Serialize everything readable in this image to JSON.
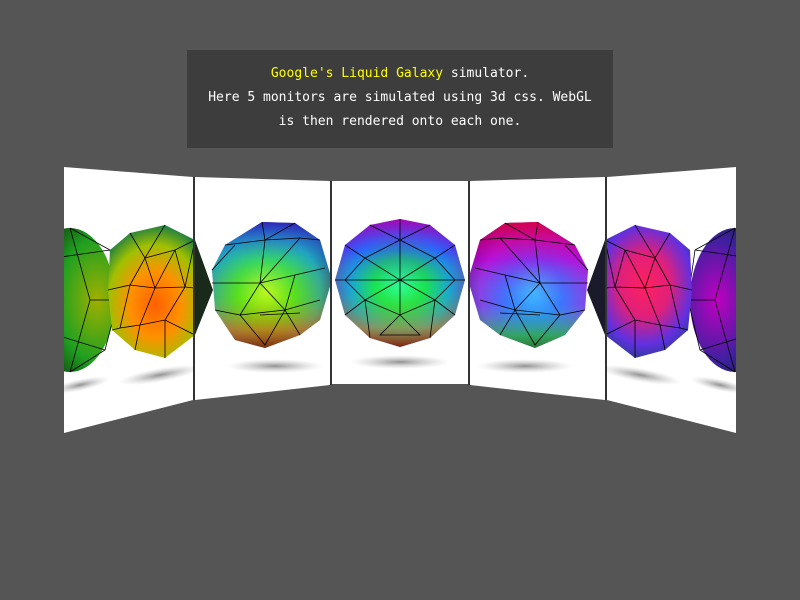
{
  "info": {
    "link_text": "Google's Liquid Galaxy",
    "line1_suffix": " simulator.",
    "line2": "Here 5 monitors are simulated using 3d css. WebGL",
    "line3": "is then rendered onto each one."
  },
  "colors": {
    "background": "#555555",
    "info_panel": "#3d3d3d",
    "link": "#ffff00",
    "text": "#ffffff",
    "screen": "#ffffff"
  },
  "monitors": [
    {
      "name": "monitor-1",
      "view": "far-left",
      "sphere_hues": [
        "green",
        "orange",
        "red"
      ]
    },
    {
      "name": "monitor-2",
      "view": "left",
      "sphere_hues": [
        "green",
        "yellow",
        "blue",
        "orange"
      ]
    },
    {
      "name": "monitor-3",
      "view": "center",
      "sphere_hues": [
        "purple",
        "blue",
        "green",
        "yellow"
      ]
    },
    {
      "name": "monitor-4",
      "view": "right",
      "sphere_hues": [
        "red",
        "magenta",
        "blue",
        "green"
      ]
    },
    {
      "name": "monitor-5",
      "view": "far-right",
      "sphere_hues": [
        "red",
        "magenta",
        "blue"
      ]
    }
  ]
}
